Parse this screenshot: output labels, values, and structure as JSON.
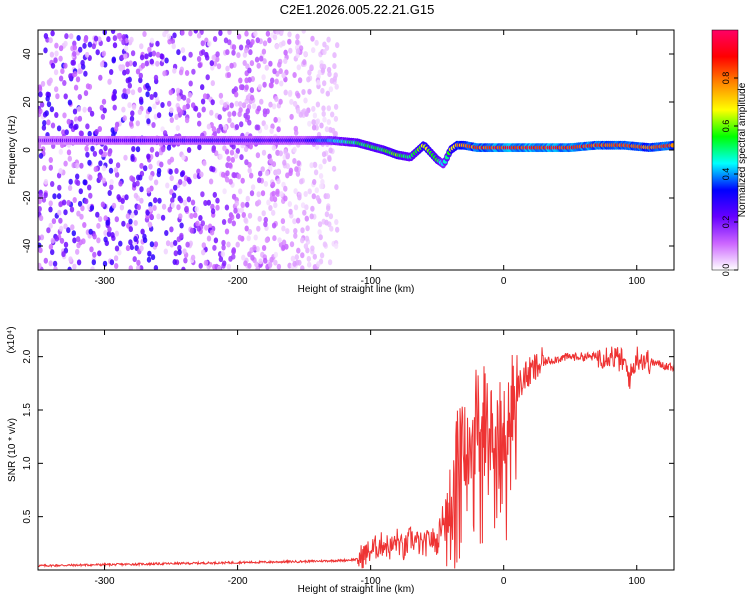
{
  "title": "C2E1.2026.005.22.21.G15",
  "chart_data": [
    {
      "type": "heatmap",
      "xlabel": "Height of straight line (km)",
      "ylabel": "Frequency (Hz)",
      "xlim": [
        -350,
        128
      ],
      "ylim": [
        -50,
        50
      ],
      "xticks": [
        -300,
        -200,
        -100,
        0,
        100
      ],
      "yticks": [
        -40,
        -20,
        0,
        20,
        40
      ],
      "grid": false,
      "colorbar": {
        "label": "Normalized spectral amplitude",
        "range": [
          0,
          1
        ],
        "ticks": [
          0.0,
          0.2,
          0.4,
          0.6,
          0.8
        ],
        "colors": [
          "#ffffff",
          "#cc66ff",
          "#6600ff",
          "#0000ff",
          "#00ffff",
          "#00ff00",
          "#ffff00",
          "#ff8800",
          "#ff0000",
          "#ff0066"
        ]
      },
      "ridge": {
        "description": "frequency of dominant spectral line vs height",
        "x": [
          -350,
          -300,
          -250,
          -200,
          -150,
          -130,
          -110,
          -90,
          -80,
          -70,
          -60,
          -50,
          -45,
          -40,
          -35,
          -30,
          -20,
          -10,
          0,
          20,
          50,
          70,
          90,
          110,
          128
        ],
        "y": [
          4,
          4,
          4,
          4,
          4,
          4,
          3,
          0,
          -2,
          -3,
          2,
          -4,
          -6,
          0,
          2,
          2,
          1,
          1,
          1,
          1,
          1,
          2,
          2,
          1,
          2
        ],
        "amplitude": [
          0.2,
          0.25,
          0.3,
          0.3,
          0.3,
          0.45,
          0.55,
          0.6,
          0.62,
          0.55,
          0.7,
          0.6,
          0.45,
          0.65,
          0.8,
          0.85,
          0.9,
          0.92,
          0.95,
          0.95,
          0.95,
          0.9,
          0.88,
          0.85,
          0.9
        ]
      }
    },
    {
      "type": "line",
      "xlabel": "Height of straight line (km)",
      "ylabel": "SNR (10 * v/v)",
      "y_multiplier": "(x10⁴)",
      "xlim": [
        -350,
        128
      ],
      "ylim": [
        0,
        2.25
      ],
      "xticks": [
        -300,
        -200,
        -100,
        0,
        100
      ],
      "yticks": [
        0.5,
        1.0,
        1.5,
        2.0
      ],
      "color": "#ee3333",
      "series": [
        {
          "x": [
            -350,
            -300,
            -250,
            -200,
            -150,
            -120,
            -110,
            -100,
            -95,
            -90,
            -85,
            -80,
            -75,
            -70,
            -60,
            -55,
            -50,
            -45,
            -40,
            -35,
            -30,
            -25,
            -20,
            -17,
            -15,
            -10,
            -5,
            0,
            5,
            10,
            15,
            20,
            25,
            30,
            40,
            50,
            60,
            70,
            80,
            90,
            95,
            100,
            110,
            120,
            128
          ],
          "y": [
            0.04,
            0.05,
            0.06,
            0.07,
            0.08,
            0.09,
            0.1,
            0.18,
            0.22,
            0.25,
            0.2,
            0.28,
            0.18,
            0.3,
            0.22,
            0.3,
            0.25,
            0.55,
            0.8,
            1.1,
            1.2,
            1.4,
            1.55,
            1.0,
            1.5,
            1.3,
            1.45,
            1.3,
            1.55,
            1.7,
            1.8,
            1.85,
            1.9,
            1.95,
            1.98,
            2.0,
            2.0,
            2.0,
            2.02,
            1.95,
            1.8,
            2.0,
            1.95,
            1.92,
            1.9
          ]
        }
      ]
    }
  ]
}
